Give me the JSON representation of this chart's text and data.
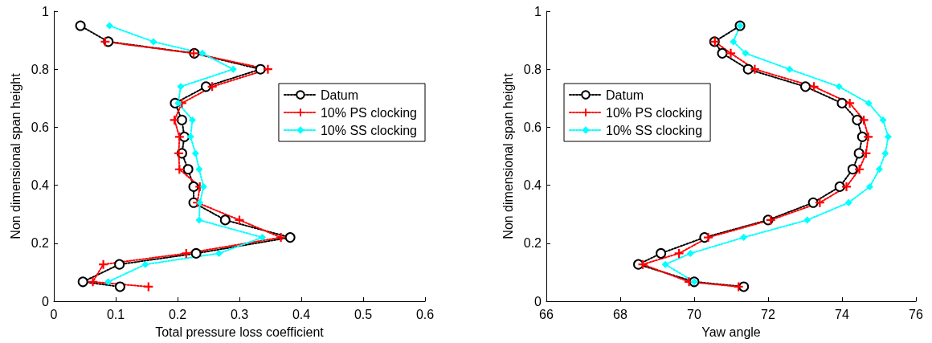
{
  "chart_data": [
    {
      "type": "line",
      "xlabel": "Total pressure loss coefficient",
      "ylabel": "Non dimensional span height",
      "xlim": [
        0,
        0.6
      ],
      "xticks": [
        0,
        0.1,
        0.2,
        0.3,
        0.4,
        0.5,
        0.6
      ],
      "ylim": [
        0,
        1
      ],
      "yticks": [
        0,
        0.2,
        0.4,
        0.6,
        0.8,
        1
      ],
      "grid": false,
      "legend": "right",
      "line_style": "dotted",
      "series": [
        {
          "name": "Datum",
          "color": "#000000",
          "marker": "circle",
          "x": [
            0.107,
            0.047,
            0.106,
            0.23,
            0.382,
            0.277,
            0.226,
            0.226,
            0.217,
            0.207,
            0.211,
            0.207,
            0.196,
            0.246,
            0.334,
            0.227,
            0.088,
            0.043
          ],
          "values": [
            0.05,
            0.067,
            0.127,
            0.165,
            0.22,
            0.28,
            0.34,
            0.395,
            0.455,
            0.51,
            0.567,
            0.625,
            0.683,
            0.74,
            0.8,
            0.855,
            0.895,
            0.95
          ]
        },
        {
          "name": "10% PS clocking",
          "color": "#ff0000",
          "marker": "cross",
          "x": [
            0.153,
            0.063,
            0.08,
            0.214,
            0.367,
            0.3,
            0.232,
            0.236,
            0.203,
            0.202,
            0.203,
            0.195,
            0.207,
            0.256,
            0.346,
            0.226,
            0.083
          ],
          "values": [
            0.05,
            0.067,
            0.127,
            0.165,
            0.22,
            0.28,
            0.34,
            0.395,
            0.455,
            0.51,
            0.567,
            0.625,
            0.683,
            0.74,
            0.8,
            0.855,
            0.895
          ]
        },
        {
          "name": "10% SS clocking",
          "color": "#00ffff",
          "marker": "diamond",
          "x": [
            0.088,
            0.148,
            0.267,
            0.337,
            0.235,
            0.236,
            0.242,
            0.235,
            0.229,
            0.221,
            0.224,
            0.201,
            0.205,
            0.29,
            0.24,
            0.161,
            0.09
          ],
          "values": [
            0.067,
            0.127,
            0.165,
            0.22,
            0.28,
            0.34,
            0.395,
            0.455,
            0.51,
            0.567,
            0.625,
            0.683,
            0.74,
            0.8,
            0.855,
            0.895,
            0.95
          ]
        }
      ]
    },
    {
      "type": "line",
      "xlabel": "Yaw angle",
      "ylabel": "Non dimensional span height",
      "xlim": [
        66,
        76
      ],
      "xticks": [
        66,
        68,
        70,
        72,
        74,
        76
      ],
      "ylim": [
        0,
        1
      ],
      "yticks": [
        0,
        0.2,
        0.4,
        0.6,
        0.8,
        1
      ],
      "grid": false,
      "legend": "left",
      "line_style": "dotted",
      "series": [
        {
          "name": "Datum",
          "color": "#000000",
          "marker": "circle",
          "x": [
            71.34,
            70.0,
            68.49,
            69.1,
            70.28,
            72.0,
            73.22,
            73.94,
            74.29,
            74.46,
            74.55,
            74.41,
            74.0,
            73.01,
            71.46,
            70.76,
            70.55,
            71.24
          ],
          "values": [
            0.05,
            0.067,
            0.127,
            0.165,
            0.22,
            0.28,
            0.34,
            0.395,
            0.455,
            0.51,
            0.567,
            0.625,
            0.683,
            0.74,
            0.8,
            0.855,
            0.895,
            0.95
          ]
        },
        {
          "name": "10% PS clocking",
          "color": "#ff0000",
          "marker": "cross",
          "x": [
            71.2,
            69.86,
            68.61,
            69.59,
            70.38,
            72.07,
            73.4,
            74.12,
            74.47,
            74.65,
            74.71,
            74.59,
            74.21,
            73.24,
            71.64,
            70.99,
            70.56
          ],
          "values": [
            0.05,
            0.067,
            0.127,
            0.165,
            0.22,
            0.28,
            0.34,
            0.395,
            0.455,
            0.51,
            0.567,
            0.625,
            0.683,
            0.74,
            0.8,
            0.855,
            0.895
          ]
        },
        {
          "name": "10% SS clocking",
          "color": "#00ffff",
          "marker": "diamond",
          "x": [
            70.0,
            69.22,
            69.9,
            71.34,
            73.06,
            74.18,
            74.75,
            75.01,
            75.17,
            75.25,
            75.11,
            74.72,
            73.92,
            72.58,
            71.39,
            71.06,
            71.24
          ],
          "values": [
            0.067,
            0.127,
            0.165,
            0.22,
            0.28,
            0.34,
            0.395,
            0.455,
            0.51,
            0.567,
            0.625,
            0.683,
            0.74,
            0.8,
            0.855,
            0.895,
            0.95
          ]
        }
      ]
    }
  ]
}
